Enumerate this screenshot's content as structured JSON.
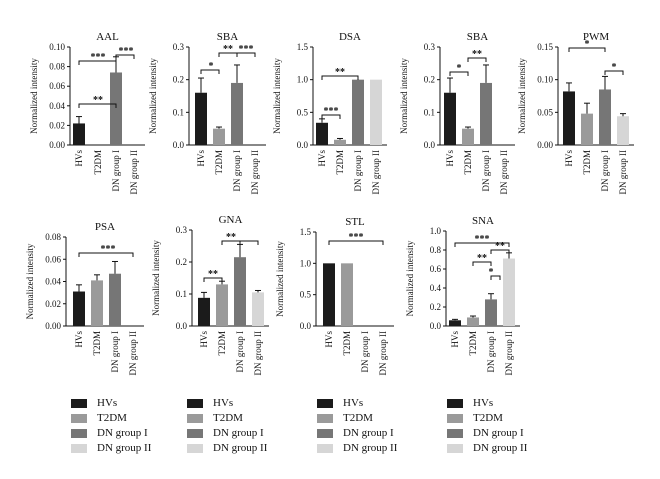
{
  "categories": [
    "HVs",
    "T2DM",
    "DN group I",
    "DN group II"
  ],
  "colors": {
    "HVs": "#1b1b1b",
    "T2DM": "#9a9a9a",
    "DN group I": "#767676",
    "DN group II": "#d6d6d6"
  },
  "chart_data": [
    {
      "type": "bar",
      "title": "AAL",
      "ylabel": "Normalized intensity",
      "ylim": [
        0,
        0.1
      ],
      "yticks": [
        "0.00",
        "0.02",
        "0.04",
        "0.06",
        "0.08",
        "0.10"
      ],
      "values": [
        0.022,
        0,
        0.074,
        0
      ],
      "errors": [
        0.007,
        0,
        0.016,
        0
      ],
      "annotations": [
        "**",
        "***",
        "***"
      ]
    },
    {
      "type": "bar",
      "title": "SBA",
      "ylabel": "Normalized intensity",
      "ylim": [
        0,
        0.3
      ],
      "yticks": [
        "0.0",
        "0.1",
        "0.2",
        "0.3"
      ],
      "values": [
        0.16,
        0.05,
        0.19,
        0
      ],
      "errors": [
        0.045,
        0.005,
        0.055,
        0
      ],
      "annotations": [
        "*",
        "**",
        "***"
      ]
    },
    {
      "type": "bar",
      "title": "DSA",
      "ylabel": "Normalized intensity",
      "ylim": [
        0,
        1.5
      ],
      "yticks": [
        "0.0",
        "0.5",
        "1.0",
        "1.5"
      ],
      "values": [
        0.34,
        0.08,
        1.0,
        1.0
      ],
      "errors": [
        0.06,
        0.02,
        0,
        0
      ],
      "annotations": [
        "***",
        "**"
      ]
    },
    {
      "type": "bar",
      "title": "SBA",
      "ylabel": "Normalized intensity",
      "ylim": [
        0,
        0.3
      ],
      "yticks": [
        "0.0",
        "0.1",
        "0.2",
        "0.3"
      ],
      "values": [
        0.16,
        0.05,
        0.19,
        0
      ],
      "errors": [
        0.045,
        0.005,
        0.055,
        0
      ],
      "annotations": [
        "*",
        "**"
      ]
    },
    {
      "type": "bar",
      "title": "PWM",
      "ylabel": "Normalized intensity",
      "ylim": [
        0,
        0.15
      ],
      "yticks": [
        "0.00",
        "0.05",
        "0.10",
        "0.15"
      ],
      "values": [
        0.082,
        0.048,
        0.085,
        0.044
      ],
      "errors": [
        0.013,
        0.016,
        0.02,
        0.004
      ],
      "annotations": [
        "*",
        "*"
      ]
    },
    {
      "type": "bar",
      "title": "PSA",
      "ylabel": "Normalized intensity",
      "ylim": [
        0,
        0.08
      ],
      "yticks": [
        "0.00",
        "0.02",
        "0.04",
        "0.06",
        "0.08"
      ],
      "values": [
        0.031,
        0.041,
        0.047,
        0
      ],
      "errors": [
        0.006,
        0.005,
        0.011,
        0
      ],
      "annotations": [
        "***"
      ]
    },
    {
      "type": "bar",
      "title": "GNA",
      "ylabel": "Normalized intensity",
      "ylim": [
        0,
        0.3
      ],
      "yticks": [
        "0.0",
        "0.1",
        "0.2",
        "0.3"
      ],
      "values": [
        0.088,
        0.13,
        0.215,
        0.105
      ],
      "errors": [
        0.017,
        0.01,
        0.04,
        0.006
      ],
      "annotations": [
        "**",
        "**"
      ]
    },
    {
      "type": "bar",
      "title": "STL",
      "ylabel": "Normalized intensity",
      "ylim": [
        0,
        1.5
      ],
      "yticks": [
        "0.0",
        "0.5",
        "1.0",
        "1.5"
      ],
      "values": [
        1.0,
        1.0,
        0,
        0
      ],
      "errors": [
        0,
        0,
        0,
        0
      ],
      "annotations": [
        "***"
      ]
    },
    {
      "type": "bar",
      "title": "SNA",
      "ylabel": "Normalized intensity",
      "ylim": [
        0,
        1.0
      ],
      "yticks": [
        "0.0",
        "0.2",
        "0.4",
        "0.6",
        "0.8",
        "1.0"
      ],
      "values": [
        0.06,
        0.09,
        0.28,
        0.71
      ],
      "errors": [
        0.01,
        0.015,
        0.06,
        0.06
      ],
      "annotations": [
        "***",
        "**",
        "**",
        "*"
      ]
    }
  ]
}
